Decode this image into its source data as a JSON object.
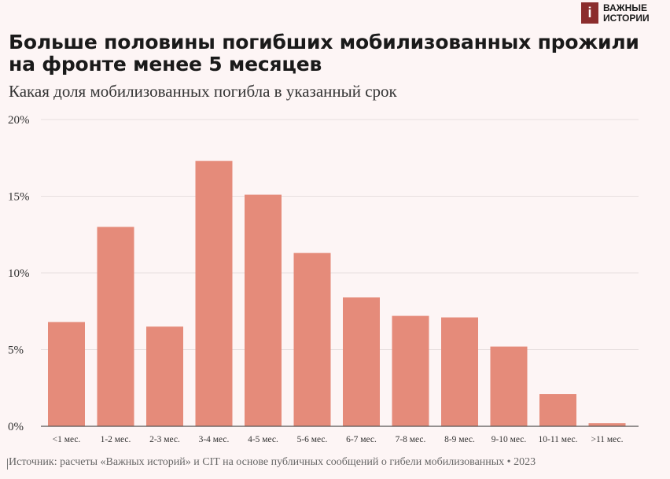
{
  "logo": {
    "mark": "i",
    "line1": "ВАЖНЫЕ",
    "line2": "ИСТОРИИ"
  },
  "header": {
    "title": "Больше половины погибших мобилизованных прожили на фронте менее 5 месяцев",
    "subtitle": "Какая доля мобилизованных погибла в указанный срок"
  },
  "source": "Источник: расчеты «Важных историй» и CIT на основе публичных сообщений о гибели мобилизованных • 2023",
  "colors": {
    "bar": "#e58b7a",
    "grid": "#e6dede",
    "axis": "#555555",
    "text": "#333333"
  },
  "chart_data": {
    "type": "bar",
    "categories": [
      "<1 мес.",
      "1-2 мес.",
      "2-3 мес.",
      "3-4 мес.",
      "4-5 мес.",
      "5-6 мес.",
      "6-7 мес.",
      "7-8 мес.",
      "8-9 мес.",
      "9-10 мес.",
      "10-11 мес.",
      ">11 мес."
    ],
    "values": [
      6.8,
      13.0,
      6.5,
      17.3,
      15.1,
      11.3,
      8.4,
      7.2,
      7.1,
      5.2,
      2.1,
      0.2
    ],
    "yticks": [
      0,
      5,
      10,
      15,
      20
    ],
    "ytick_labels": [
      "0%",
      "5%",
      "10%",
      "15%",
      "20%"
    ],
    "ylim": [
      0,
      20
    ],
    "grid": true
  }
}
